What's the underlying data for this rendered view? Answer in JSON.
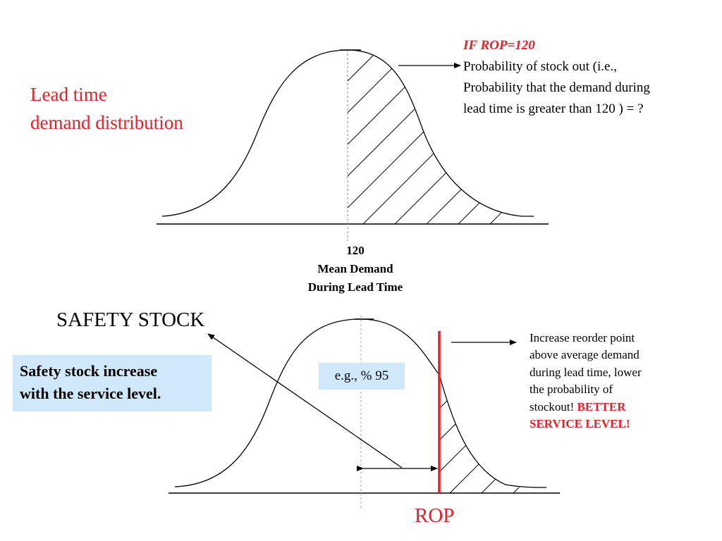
{
  "colors": {
    "accent": "#ee1c25",
    "box_fill": "#cfe8fa",
    "ink": "#000000"
  },
  "top_panel": {
    "title_line1": "Lead time",
    "title_line2": "demand distribution",
    "note_heading": "IF ROP=120",
    "note_line1": "Probability of stock out (i.e.,",
    "note_line2": "Probability that the demand during",
    "note_line3": "lead time is greater than 120 ) = ?",
    "tick_value": "120",
    "tick_label1": "Mean Demand",
    "tick_label2": "During Lead Time"
  },
  "bottom_panel": {
    "safety_stock_label": "SAFETY STOCK",
    "box_line1": "Safety stock increase",
    "box_line2": "with the service level.",
    "service_level_box": "e.g., % 95",
    "note_line1": "Increase reorder point",
    "note_line2": "above average demand",
    "note_line3": "during lead time, lower",
    "note_line4": "the probability of",
    "note_line5_plain": "stockout!",
    "note_line5_emph": "BETTER",
    "note_line6_emph": "SERVICE LEVEL!",
    "rop_label": "ROP"
  }
}
